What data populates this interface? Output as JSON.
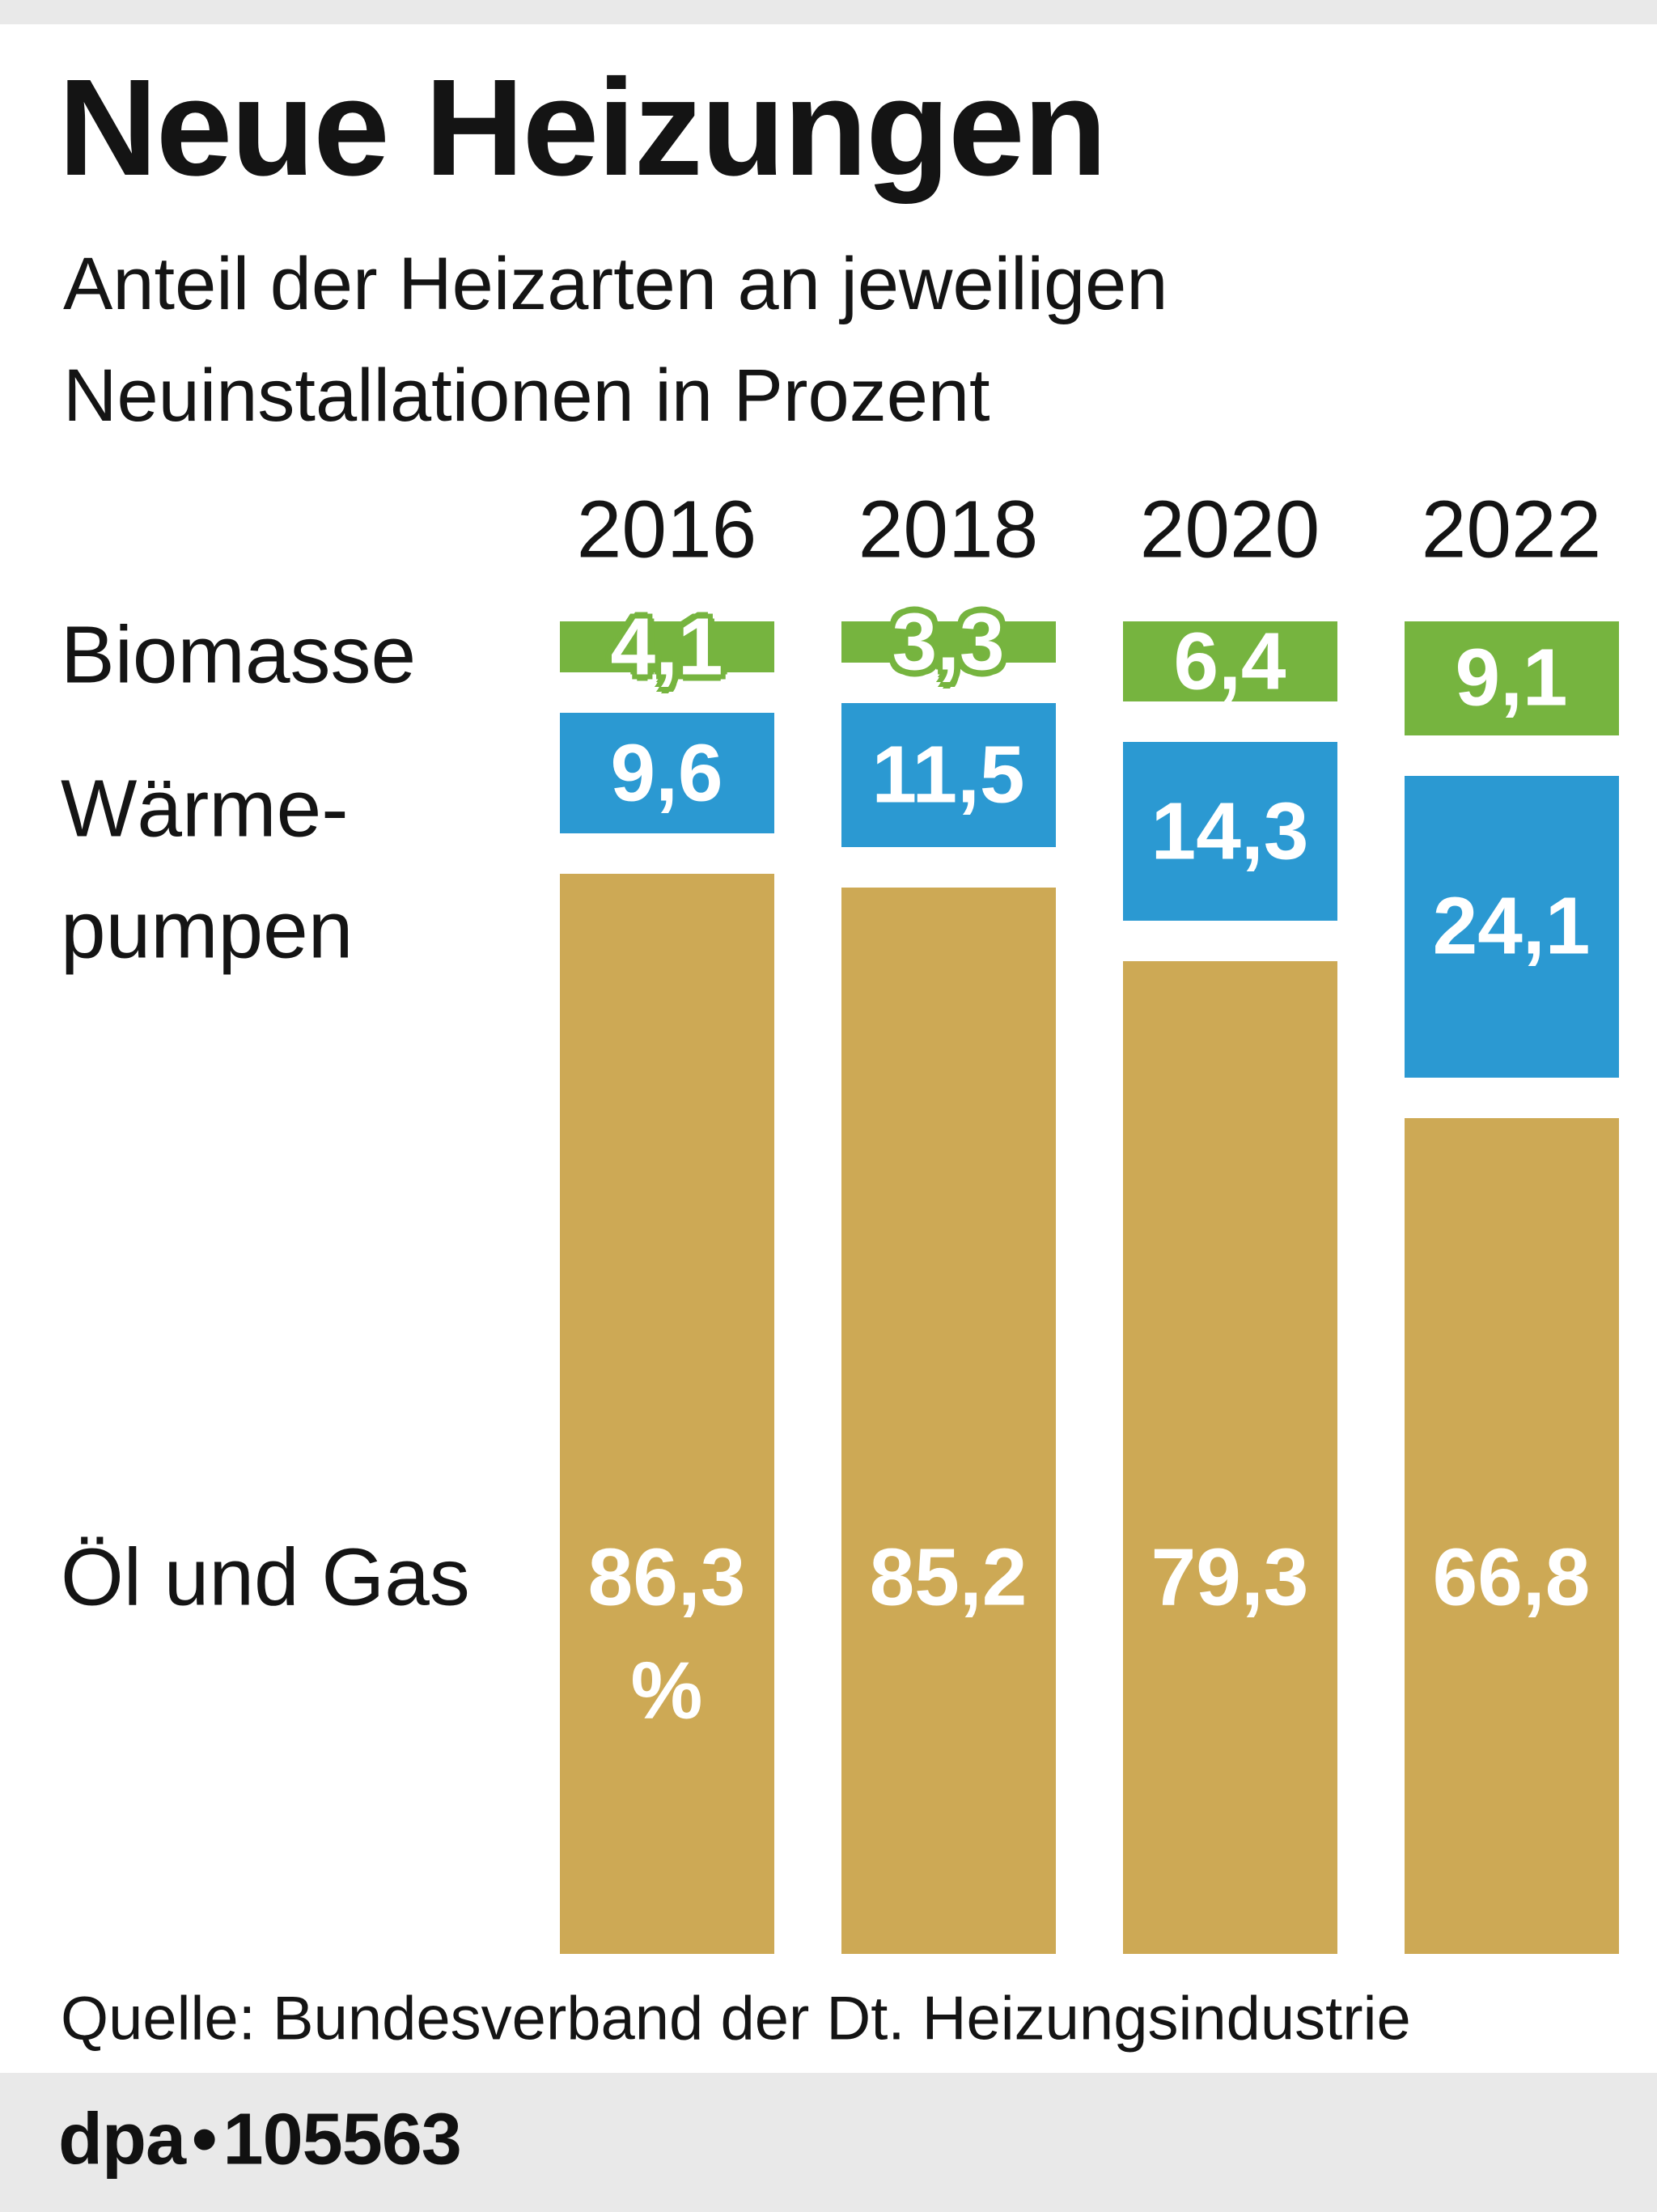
{
  "header": {
    "title": "Neue Heizungen",
    "subtitle_line1": "Anteil der Heizarten an jeweiligen",
    "subtitle_line2": "Neuinstallationen in Prozent"
  },
  "row_labels": {
    "biomasse": "Biomasse",
    "waermepumpen_line1": "Wärme-",
    "waermepumpen_line2": "pumpen",
    "oel_gas": "Öl und Gas"
  },
  "chart_data": {
    "type": "bar",
    "stacked": true,
    "orientation": "vertical",
    "title": "Neue Heizungen",
    "subtitle": "Anteil der Heizarten an jeweiligen Neuinstallationen in Prozent",
    "unit": "Prozent",
    "total_per_column": 100,
    "categories": [
      "2016",
      "2018",
      "2020",
      "2022"
    ],
    "series": [
      {
        "name": "Biomasse",
        "key": "biomasse",
        "color": "#76b43f",
        "values": [
          4.1,
          3.3,
          6.4,
          9.1
        ],
        "labels": [
          "4,1",
          "3,3",
          "6,4",
          "9,1"
        ]
      },
      {
        "name": "Wärmepumpen",
        "key": "waermepumpen",
        "color": "#2b99d2",
        "values": [
          9.6,
          11.5,
          14.3,
          24.1
        ],
        "labels": [
          "9,6",
          "11,5",
          "14,3",
          "24,1"
        ]
      },
      {
        "name": "Öl und Gas",
        "key": "oel-und-gas",
        "color": "#cda955",
        "values": [
          86.3,
          85.2,
          79.3,
          66.8
        ],
        "labels": [
          "86,3",
          "85,2",
          "79,3",
          "66,8"
        ]
      }
    ],
    "first_column_unit_suffix": "%",
    "legend_position": "left-row-labels",
    "grid": false
  },
  "source": {
    "text": "Quelle: Bundesverband der Dt. Heizungsindustrie"
  },
  "footer": {
    "brand": "dpa",
    "separator": "•",
    "graphic_id": "105563"
  },
  "colors": {
    "biomasse_green": "#76b43f",
    "waermepumpen_blue": "#2b99d2",
    "oel_gas_tan": "#cda955",
    "strip_gray": "#e9e9e9",
    "text_black": "#141414",
    "background": "#ffffff"
  }
}
